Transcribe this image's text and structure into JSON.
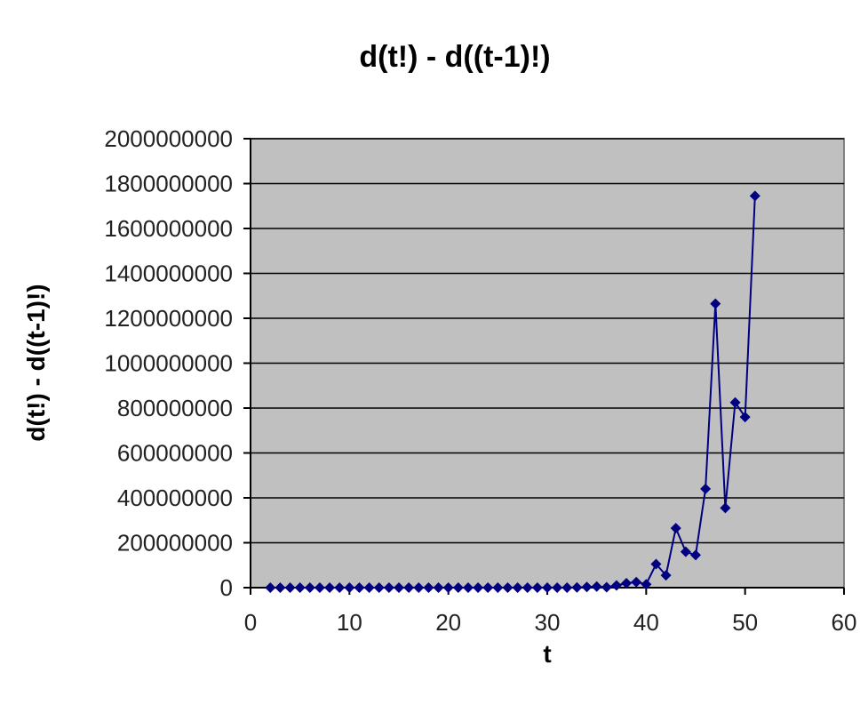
{
  "chart_data": {
    "type": "scatter",
    "title": "d(t!) - d((t-1)!)",
    "xlabel": "t",
    "ylabel": "d(t!) - d((t-1)!)",
    "xlim": [
      0,
      60
    ],
    "ylim": [
      0,
      2000000000
    ],
    "x_ticks": [
      0,
      10,
      20,
      30,
      40,
      50,
      60
    ],
    "y_ticks": [
      0,
      200000000,
      400000000,
      600000000,
      800000000,
      1000000000,
      1200000000,
      1400000000,
      1600000000,
      1800000000,
      2000000000
    ],
    "x_tick_labels": [
      "0",
      "10",
      "20",
      "30",
      "40",
      "50",
      "60"
    ],
    "y_tick_labels": [
      "0",
      "200000000",
      "400000000",
      "600000000",
      "800000000",
      "1000000000",
      "1200000000",
      "1400000000",
      "1600000000",
      "1800000000",
      "2000000000"
    ],
    "grid": "horizontal",
    "legend": "none",
    "plot_background": "#c0c0c0",
    "line_color": "#000080",
    "marker": "diamond",
    "series": [
      {
        "x": [
          2,
          3,
          4,
          5,
          6,
          7,
          8,
          9,
          10,
          11,
          12,
          13,
          14,
          15,
          16,
          17,
          18,
          19,
          20,
          21,
          22,
          23,
          24,
          25,
          26,
          27,
          28,
          29,
          30,
          31,
          32,
          33,
          34,
          35,
          36,
          37,
          38,
          39,
          40,
          41,
          42,
          43,
          44,
          45,
          46,
          47,
          48,
          49,
          50,
          51
        ],
        "values": [
          0,
          0,
          0,
          0,
          0,
          0,
          0,
          0,
          0,
          0,
          0,
          0,
          0,
          0,
          0,
          0,
          0,
          0,
          0,
          0,
          0,
          0,
          0,
          0,
          0,
          0,
          0,
          0,
          0,
          0,
          0,
          1000000,
          3000000,
          5000000,
          2000000,
          10000000,
          20000000,
          25000000,
          15000000,
          105000000,
          55000000,
          265000000,
          160000000,
          145000000,
          440000000,
          1265000000,
          355000000,
          825000000,
          760000000,
          1745000000
        ]
      }
    ]
  }
}
